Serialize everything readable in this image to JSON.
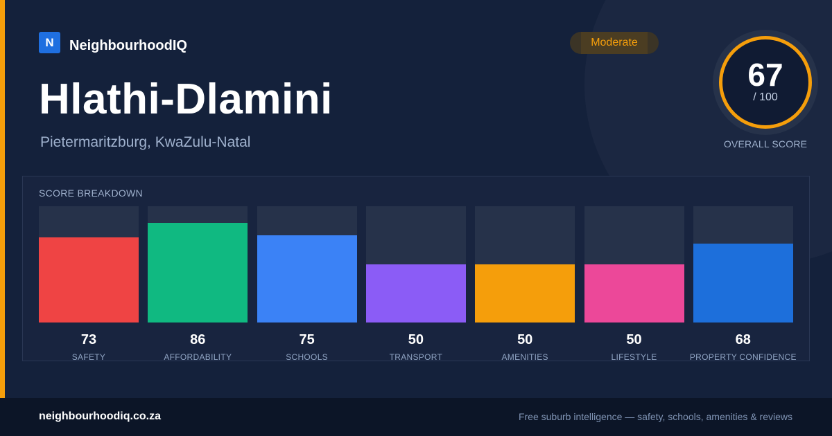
{
  "brand": {
    "logo_letter": "N",
    "name": "NeighbourhoodIQ"
  },
  "rating_badge": {
    "label": "Moderate",
    "color": "#f59e0b"
  },
  "suburb": {
    "name": "Hlathi-Dlamini",
    "region": "Pietermaritzburg, KwaZulu-Natal"
  },
  "overall_score": {
    "value": "67",
    "max_label": "/ 100",
    "caption": "OVERALL SCORE",
    "ring_color": "#f59e0b"
  },
  "breakdown": {
    "title": "SCORE BREAKDOWN"
  },
  "chart_data": {
    "type": "bar",
    "title": "SCORE BREAKDOWN",
    "categories": [
      "SAFETY",
      "AFFORDABILITY",
      "SCHOOLS",
      "TRANSPORT",
      "AMENITIES",
      "LIFESTYLE",
      "PROPERTY CONFIDENCE"
    ],
    "values": [
      73,
      86,
      75,
      50,
      50,
      50,
      68
    ],
    "colors": [
      "#ef4444",
      "#10b981",
      "#3b82f6",
      "#8b5cf6",
      "#f59e0b",
      "#ec4899",
      "#1d6fdb"
    ],
    "ylim": [
      0,
      100
    ],
    "grid": false
  },
  "footer": {
    "url": "neighbourhoodiq.co.za",
    "tagline": "Free suburb intelligence — safety, schools, amenities & reviews"
  }
}
